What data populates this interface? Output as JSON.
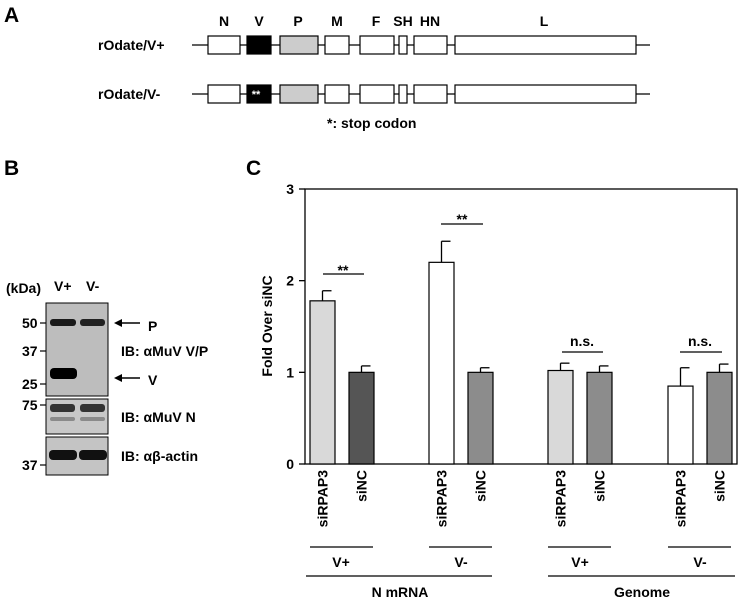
{
  "panel_a": {
    "letter": "A",
    "gene_names": [
      "N",
      "V",
      "P",
      "M",
      "F",
      "SH",
      "HN",
      "L"
    ],
    "constructs": [
      {
        "label": "rOdate/V+",
        "mutation_mark": ""
      },
      {
        "label": "rOdate/V-",
        "mutation_mark": "**"
      }
    ],
    "footnote": "*: stop codon"
  },
  "panel_b": {
    "letter": "B",
    "unit_label": "(kDa)",
    "lane_labels": [
      "V+",
      "V-"
    ],
    "mw_markers": [
      "50",
      "37",
      "25",
      "75",
      "37"
    ],
    "arrows": [
      "P",
      "V"
    ],
    "blot_labels": [
      "IB: αMuV V/P",
      "IB: αMuV N",
      "IB: αβ-actin"
    ]
  },
  "panel_c": {
    "letter": "C",
    "significance": [
      "**",
      "**",
      "n.s.",
      "n.s."
    ],
    "group_labels": [
      "V+",
      "V-",
      "V+",
      "V-"
    ],
    "super_labels": [
      "N mRNA",
      "Genome"
    ]
  },
  "chart_data": {
    "type": "bar",
    "ylabel": "Fold Over siNC",
    "ylim": [
      0,
      3
    ],
    "yticks": [
      0,
      1,
      2,
      3
    ],
    "categories": [
      "siRPAP3",
      "siNC",
      "siRPAP3",
      "siNC",
      "siRPAP3",
      "siNC",
      "siRPAP3",
      "siNC"
    ],
    "values": [
      1.78,
      1.0,
      2.2,
      1.0,
      1.02,
      1.0,
      0.85,
      1.0
    ],
    "errors": [
      0.11,
      0.07,
      0.23,
      0.05,
      0.08,
      0.07,
      0.2,
      0.09
    ],
    "fill_colors": [
      "#d9d9d9",
      "#555555",
      "#ffffff",
      "#8c8c8c",
      "#d9d9d9",
      "#8c8c8c",
      "#ffffff",
      "#8c8c8c"
    ],
    "groups": [
      "V+",
      "V-",
      "V+",
      "V-"
    ],
    "super_groups": [
      "N mRNA",
      "Genome"
    ]
  }
}
